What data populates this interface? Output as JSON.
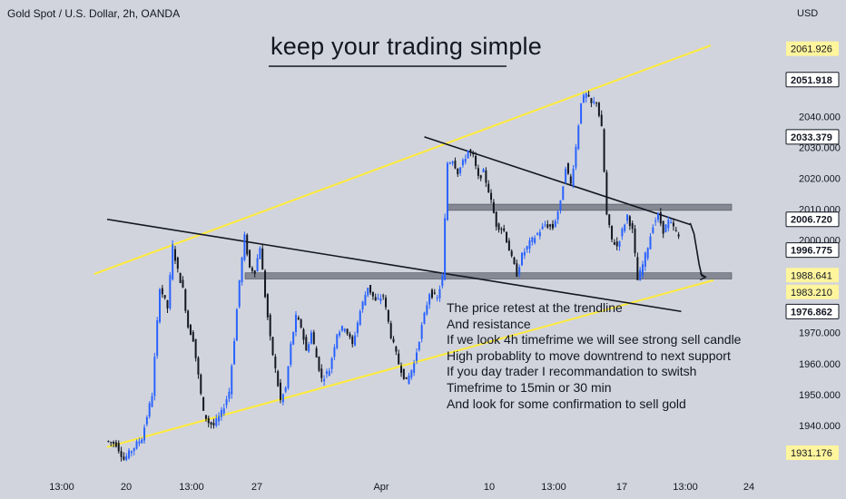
{
  "header": {
    "symbol": "Gold Spot / U.S. Dollar, 2h, OANDA",
    "currency": "USD"
  },
  "annotation": {
    "headline": "keep your trading simple",
    "note_lines": [
      "The price retest at the trendline",
      "And resistance",
      "If we look 4h timefrime we will see strong sell candle",
      "High probablity to move downtrend to next support",
      "If you day trader I recommandation to switsh",
      "Timefrime to 15min or 30 min",
      "And look for some confirmation to sell gold"
    ]
  },
  "colors": {
    "background": "#d1d4dc",
    "channel": "#ffeb3b",
    "trendline": "#131722",
    "candle_up": "#2962ff",
    "candle_down": "#131722",
    "zone": "#787b86"
  },
  "chart_data": {
    "type": "candlestick",
    "title": "Gold Spot / U.S. Dollar, 2h, OANDA",
    "ylim": [
      1925,
      2068
    ],
    "y_ticks": [
      1940,
      1950,
      1960,
      1970,
      1980,
      1990,
      2000,
      2010,
      2020,
      2030,
      2040
    ],
    "y_tick_labels": [
      "1940.000",
      "1950.000",
      "1960.000",
      "1970.000",
      "",
      "",
      "2000.000",
      "2010.000",
      "2020.000",
      "2030.000",
      "2040.000"
    ],
    "price_labels": [
      {
        "value": 2061.926,
        "label": "2061.926",
        "style": "yellow"
      },
      {
        "value": 2051.918,
        "label": "2051.918",
        "style": "dark"
      },
      {
        "value": 2033.379,
        "label": "2033.379",
        "style": "outline"
      },
      {
        "value": 2006.72,
        "label": "2006.720",
        "style": "outline"
      },
      {
        "value": 1996.775,
        "label": "1996.775",
        "style": "outline"
      },
      {
        "value": 1988.641,
        "label": "1988.641",
        "style": "yellow"
      },
      {
        "value": 1983.21,
        "label": "1983.210",
        "style": "yellow"
      },
      {
        "value": 1976.862,
        "label": "1976.862",
        "style": "outline"
      },
      {
        "value": 1931.176,
        "label": "1931.176",
        "style": "yellow"
      }
    ],
    "x_ticks": [
      "13:00",
      "20",
      "13:00",
      "27",
      "Apr",
      "10",
      "13:00",
      "17",
      "13:00",
      "24"
    ],
    "zones": [
      {
        "from": 2009.6,
        "to": 2011.6
      },
      {
        "from": 1987.4,
        "to": 1989.4
      }
    ],
    "price_path": [
      [
        0,
        1935
      ],
      [
        8,
        1934
      ],
      [
        14,
        1929
      ],
      [
        20,
        1932
      ],
      [
        28,
        1936
      ],
      [
        36,
        1950
      ],
      [
        42,
        1985
      ],
      [
        48,
        1978
      ],
      [
        52,
        1998
      ],
      [
        56,
        1990
      ],
      [
        60,
        1984
      ],
      [
        64,
        1972
      ],
      [
        68,
        1968
      ],
      [
        72,
        1956
      ],
      [
        76,
        1944
      ],
      [
        80,
        1941
      ],
      [
        84,
        1940
      ],
      [
        90,
        1944
      ],
      [
        96,
        1951
      ],
      [
        100,
        1968
      ],
      [
        104,
        1987
      ],
      [
        108,
        2001
      ],
      [
        112,
        1991
      ],
      [
        116,
        1990
      ],
      [
        120,
        1998
      ],
      [
        124,
        1982
      ],
      [
        128,
        1968
      ],
      [
        132,
        1958
      ],
      [
        136,
        1948
      ],
      [
        140,
        1952
      ],
      [
        144,
        1966
      ],
      [
        148,
        1975
      ],
      [
        152,
        1972
      ],
      [
        156,
        1964
      ],
      [
        160,
        1970
      ],
      [
        164,
        1962
      ],
      [
        168,
        1955
      ],
      [
        174,
        1958
      ],
      [
        180,
        1970
      ],
      [
        186,
        1972
      ],
      [
        192,
        1966
      ],
      [
        198,
        1977
      ],
      [
        204,
        1985
      ],
      [
        210,
        1980
      ],
      [
        216,
        1982
      ],
      [
        222,
        1969
      ],
      [
        228,
        1960
      ],
      [
        234,
        1954
      ],
      [
        240,
        1960
      ],
      [
        246,
        1972
      ],
      [
        252,
        1983
      ],
      [
        258,
        1981
      ],
      [
        262,
        1988
      ],
      [
        266,
        2025
      ],
      [
        270,
        2026
      ],
      [
        274,
        2022
      ],
      [
        278,
        2025
      ],
      [
        282,
        2029
      ],
      [
        286,
        2027
      ],
      [
        290,
        2020
      ],
      [
        294,
        2022
      ],
      [
        298,
        2016
      ],
      [
        304,
        2005
      ],
      [
        310,
        2003
      ],
      [
        316,
        1994
      ],
      [
        320,
        1989
      ],
      [
        324,
        1995
      ],
      [
        330,
        1999
      ],
      [
        336,
        2002
      ],
      [
        342,
        2005
      ],
      [
        348,
        2004
      ],
      [
        354,
        2012
      ],
      [
        358,
        2024
      ],
      [
        362,
        2018
      ],
      [
        366,
        2030
      ],
      [
        370,
        2045
      ],
      [
        374,
        2047
      ],
      [
        378,
        2044
      ],
      [
        382,
        2045
      ],
      [
        386,
        2036
      ],
      [
        390,
        2008
      ],
      [
        394,
        2000
      ],
      [
        398,
        1998
      ],
      [
        402,
        2003
      ],
      [
        406,
        2008
      ],
      [
        410,
        2003
      ],
      [
        414,
        1987
      ],
      [
        418,
        1992
      ],
      [
        422,
        1998
      ],
      [
        426,
        2005
      ],
      [
        430,
        2008
      ],
      [
        434,
        2003
      ],
      [
        438,
        2006
      ],
      [
        442,
        2004
      ],
      [
        446,
        2001
      ]
    ],
    "channel_upper": [
      [
        -10,
        1989
      ],
      [
        470,
        2063
      ]
    ],
    "channel_lower": [
      [
        0,
        1933
      ],
      [
        472,
        1987
      ]
    ],
    "resistance_long": [
      [
        0,
        2006.7
      ],
      [
        447,
        1976.9
      ]
    ],
    "resistance_short": [
      [
        247,
        2033.4
      ],
      [
        454,
        2005.0
      ]
    ],
    "forecast_path": [
      [
        454,
        2005.5
      ],
      [
        457,
        2002
      ],
      [
        459,
        1997
      ],
      [
        461,
        1992
      ],
      [
        463,
        1988.5
      ],
      [
        466,
        1988
      ]
    ]
  }
}
